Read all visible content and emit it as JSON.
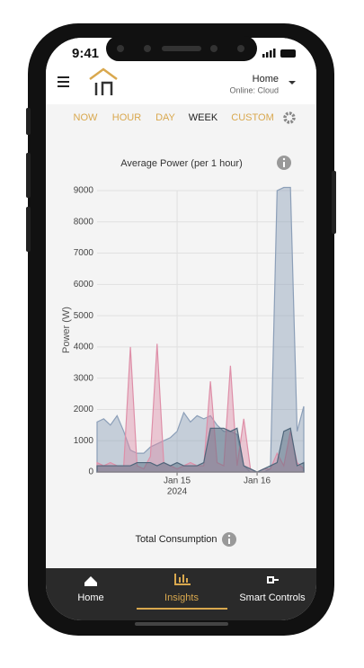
{
  "status_bar": {
    "time": "9:41"
  },
  "header": {
    "location": "Home",
    "status": "Online: Cloud"
  },
  "tabs": [
    "NOW",
    "HOUR",
    "DAY",
    "WEEK",
    "CUSTOM"
  ],
  "chart_data": {
    "type": "area",
    "title": "Average Power (per 1 hour)",
    "y_label": "Power (W)",
    "categories": [
      null,
      null,
      null,
      null,
      null,
      null,
      null,
      null,
      null,
      null,
      null,
      null,
      "Jan 15",
      null,
      null,
      null,
      null,
      null,
      null,
      null,
      null,
      null,
      null,
      null,
      "Jan 16",
      null,
      null,
      null,
      null,
      null,
      null,
      null
    ],
    "year_label": "2024",
    "series": [
      {
        "color": "#8c9fb8",
        "values": [
          1600,
          1700,
          1500,
          1800,
          1300,
          700,
          600,
          600,
          800,
          900,
          1000,
          1100,
          1300,
          1900,
          1600,
          1800,
          1700,
          1800,
          1500,
          1300,
          1300,
          1200,
          200,
          0,
          0,
          0,
          100,
          9000,
          9100,
          9100,
          1300,
          2100
        ]
      },
      {
        "color": "#de8fa8",
        "values": [
          300,
          200,
          300,
          200,
          200,
          4000,
          200,
          100,
          500,
          4100,
          300,
          200,
          100,
          200,
          300,
          200,
          200,
          2900,
          300,
          200,
          3400,
          200,
          1700,
          100,
          0,
          100,
          100,
          600,
          200,
          1300,
          300,
          100
        ]
      },
      {
        "color": "#4f667b",
        "values": [
          200,
          200,
          200,
          200,
          200,
          200,
          300,
          300,
          300,
          200,
          300,
          200,
          300,
          200,
          200,
          200,
          300,
          1400,
          1400,
          1400,
          1300,
          1400,
          200,
          100,
          0,
          100,
          200,
          300,
          1300,
          1400,
          200,
          300
        ]
      }
    ],
    "ylim": [
      0,
      9000
    ],
    "yticks": [
      0,
      1000,
      2000,
      3000,
      4000,
      5000,
      6000,
      7000,
      8000,
      9000
    ],
    "grid": true
  },
  "section": {
    "title": "Total Consumption"
  },
  "nav": [
    "Home",
    "Insights",
    "Smart Controls"
  ]
}
